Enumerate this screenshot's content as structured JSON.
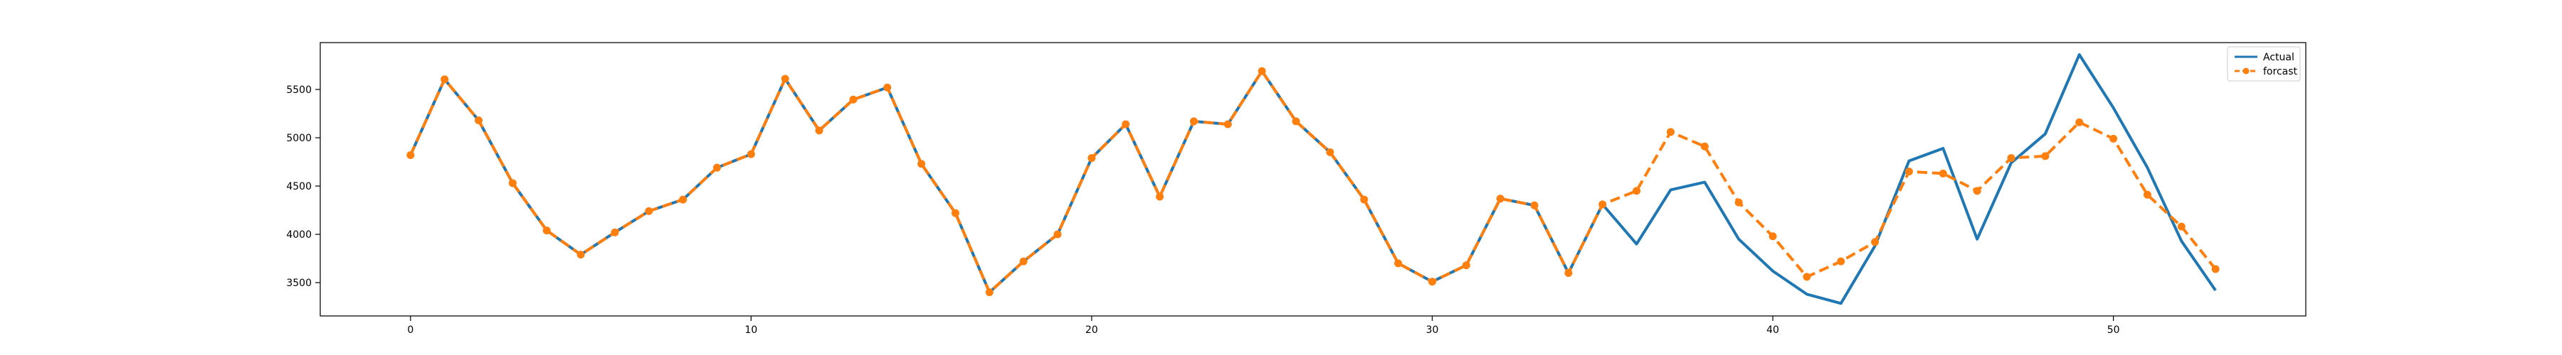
{
  "chart_data": {
    "type": "line",
    "title": "",
    "xlabel": "",
    "ylabel": "",
    "xlim": [
      -2.65,
      55.65
    ],
    "ylim": [
      3155,
      5985
    ],
    "x_ticks": [
      0,
      10,
      20,
      30,
      40,
      50
    ],
    "y_ticks": [
      3500,
      4000,
      4500,
      5000,
      5500
    ],
    "grid": false,
    "legend": "top-right",
    "series": [
      {
        "name": "Actual",
        "color": "#1f77b4",
        "style": "solid",
        "x": [
          0,
          1,
          2,
          3,
          4,
          5,
          6,
          7,
          8,
          9,
          10,
          11,
          12,
          13,
          14,
          15,
          16,
          17,
          18,
          19,
          20,
          21,
          22,
          23,
          24,
          25,
          26,
          27,
          28,
          29,
          30,
          31,
          32,
          33,
          34,
          35,
          36,
          37,
          38,
          39,
          40,
          41,
          42,
          43,
          44,
          45,
          46,
          47,
          48,
          49,
          50,
          51,
          52,
          53
        ],
        "y": [
          4820,
          5605,
          5180,
          4530,
          4040,
          3790,
          4020,
          4240,
          4360,
          4690,
          4830,
          5610,
          5075,
          5395,
          5520,
          4730,
          4220,
          3400,
          3720,
          4000,
          4790,
          5140,
          4390,
          5170,
          5140,
          5690,
          5170,
          4850,
          4360,
          3700,
          3510,
          3680,
          4370,
          4300,
          3600,
          4310,
          3900,
          4460,
          4540,
          3950,
          3620,
          3380,
          3285,
          3880,
          4760,
          4890,
          3950,
          4740,
          5040,
          5860,
          5310,
          4690,
          3930,
          3420
        ]
      },
      {
        "name": "forcast",
        "color": "#ff7f0e",
        "style": "dashed",
        "marker": "circle",
        "x": [
          0,
          1,
          2,
          3,
          4,
          5,
          6,
          7,
          8,
          9,
          10,
          11,
          12,
          13,
          14,
          15,
          16,
          17,
          18,
          19,
          20,
          21,
          22,
          23,
          24,
          25,
          26,
          27,
          28,
          29,
          30,
          31,
          32,
          33,
          34,
          35,
          36,
          37,
          38,
          39,
          40,
          41,
          42,
          43,
          44,
          45,
          46,
          47,
          48,
          49,
          50,
          51,
          52,
          53
        ],
        "y": [
          4820,
          5605,
          5180,
          4530,
          4040,
          3790,
          4020,
          4240,
          4360,
          4690,
          4830,
          5610,
          5075,
          5395,
          5520,
          4730,
          4220,
          3400,
          3720,
          4000,
          4790,
          5140,
          4390,
          5170,
          5140,
          5690,
          5170,
          4850,
          4360,
          3700,
          3510,
          3680,
          4370,
          4300,
          3600,
          4310,
          4450,
          5060,
          4910,
          4330,
          3980,
          3560,
          3720,
          3920,
          4650,
          4630,
          4450,
          4790,
          4810,
          5160,
          4990,
          4410,
          4080,
          3640
        ]
      }
    ]
  }
}
